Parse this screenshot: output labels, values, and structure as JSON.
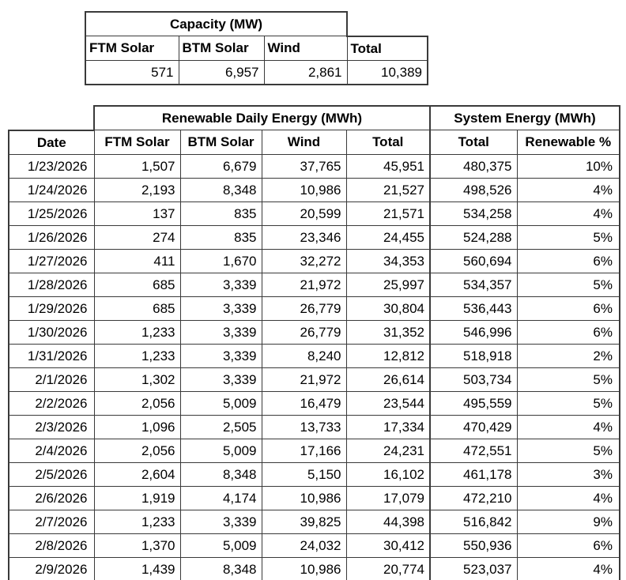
{
  "colors": {
    "background": "#ffffff",
    "text": "#000000",
    "border": "#3a3a3a"
  },
  "capacity_table": {
    "group_header": "Capacity (MW)",
    "columns": [
      "FTM Solar",
      "BTM Solar",
      "Wind",
      "Total"
    ],
    "values": [
      "571",
      "6,957",
      "2,861",
      "10,389"
    ]
  },
  "energy_table": {
    "renewable_group_header": "Renewable Daily Energy (MWh)",
    "system_group_header": "System Energy (MWh)",
    "columns": [
      "Date",
      "FTM Solar",
      "BTM Solar",
      "Wind",
      "Total",
      "Total",
      "Renewable %"
    ],
    "rows": [
      [
        "1/23/2026",
        "1,507",
        "6,679",
        "37,765",
        "45,951",
        "480,375",
        "10%"
      ],
      [
        "1/24/2026",
        "2,193",
        "8,348",
        "10,986",
        "21,527",
        "498,526",
        "4%"
      ],
      [
        "1/25/2026",
        "137",
        "835",
        "20,599",
        "21,571",
        "534,258",
        "4%"
      ],
      [
        "1/26/2026",
        "274",
        "835",
        "23,346",
        "24,455",
        "524,288",
        "5%"
      ],
      [
        "1/27/2026",
        "411",
        "1,670",
        "32,272",
        "34,353",
        "560,694",
        "6%"
      ],
      [
        "1/28/2026",
        "685",
        "3,339",
        "21,972",
        "25,997",
        "534,357",
        "5%"
      ],
      [
        "1/29/2026",
        "685",
        "3,339",
        "26,779",
        "30,804",
        "536,443",
        "6%"
      ],
      [
        "1/30/2026",
        "1,233",
        "3,339",
        "26,779",
        "31,352",
        "546,996",
        "6%"
      ],
      [
        "1/31/2026",
        "1,233",
        "3,339",
        "8,240",
        "12,812",
        "518,918",
        "2%"
      ],
      [
        "2/1/2026",
        "1,302",
        "3,339",
        "21,972",
        "26,614",
        "503,734",
        "5%"
      ],
      [
        "2/2/2026",
        "2,056",
        "5,009",
        "16,479",
        "23,544",
        "495,559",
        "5%"
      ],
      [
        "2/3/2026",
        "1,096",
        "2,505",
        "13,733",
        "17,334",
        "470,429",
        "4%"
      ],
      [
        "2/4/2026",
        "2,056",
        "5,009",
        "17,166",
        "24,231",
        "472,551",
        "5%"
      ],
      [
        "2/5/2026",
        "2,604",
        "8,348",
        "5,150",
        "16,102",
        "461,178",
        "3%"
      ],
      [
        "2/6/2026",
        "1,919",
        "4,174",
        "10,986",
        "17,079",
        "472,210",
        "4%"
      ],
      [
        "2/7/2026",
        "1,233",
        "3,339",
        "39,825",
        "44,398",
        "516,842",
        "9%"
      ],
      [
        "2/8/2026",
        "1,370",
        "5,009",
        "24,032",
        "30,412",
        "550,936",
        "6%"
      ],
      [
        "2/9/2026",
        "1,439",
        "8,348",
        "10,986",
        "20,774",
        "523,037",
        "4%"
      ]
    ]
  }
}
